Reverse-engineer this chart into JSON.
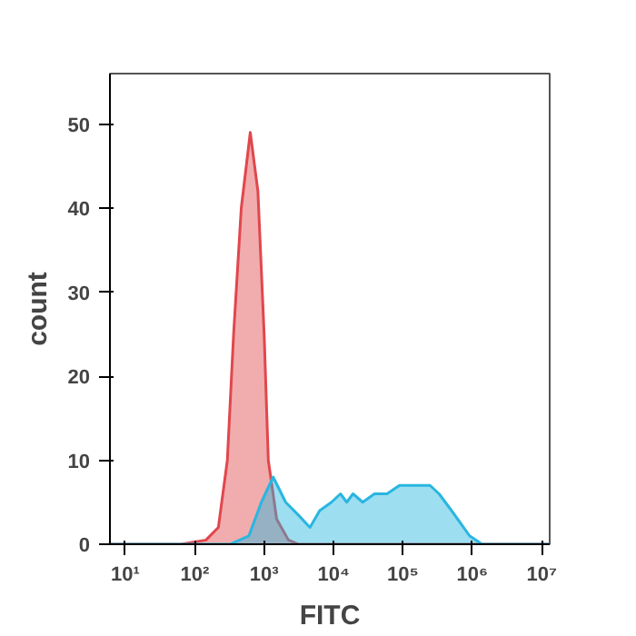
{
  "chart_data": {
    "type": "area",
    "xlabel": "FITC",
    "ylabel": "count",
    "log": "x",
    "grid": false,
    "xlim": [
      6,
      13000000
    ],
    "ylim": [
      0,
      56
    ],
    "xticks": [
      {
        "value": 10,
        "label": "10¹"
      },
      {
        "value": 100,
        "label": "10²"
      },
      {
        "value": 1000,
        "label": "10³"
      },
      {
        "value": 10000,
        "label": "10⁴"
      },
      {
        "value": 100000,
        "label": "10⁵"
      },
      {
        "value": 1000000,
        "label": "10⁶"
      },
      {
        "value": 10000000,
        "label": "10⁷"
      }
    ],
    "yticks": [
      0,
      10,
      20,
      30,
      40,
      50
    ],
    "series": [
      {
        "color": "#e0474c",
        "x": [
          6,
          63,
          145,
          219,
          295,
          363,
          468,
          631,
          813,
          1000,
          1148,
          1514,
          2239,
          3090,
          13000000
        ],
        "values": [
          0,
          0,
          0.5,
          2,
          10,
          25,
          40,
          49,
          42,
          25,
          10,
          3,
          0.5,
          0,
          0
        ]
      },
      {
        "color": "#29b6e0",
        "x": [
          6,
          324,
          603,
          912,
          1349,
          2042,
          3090,
          4571,
          6310,
          9333,
          12589,
          15488,
          19055,
          26303,
          38905,
          58884,
          89125,
          147911,
          245471,
          331131,
          501187,
          912011,
          1380384,
          13000000
        ],
        "values": [
          0,
          0,
          1,
          5,
          8,
          5,
          3.5,
          2,
          4,
          5,
          6,
          5,
          6,
          5,
          6,
          6,
          7,
          7,
          7,
          6,
          4,
          1,
          0,
          0
        ]
      }
    ]
  }
}
